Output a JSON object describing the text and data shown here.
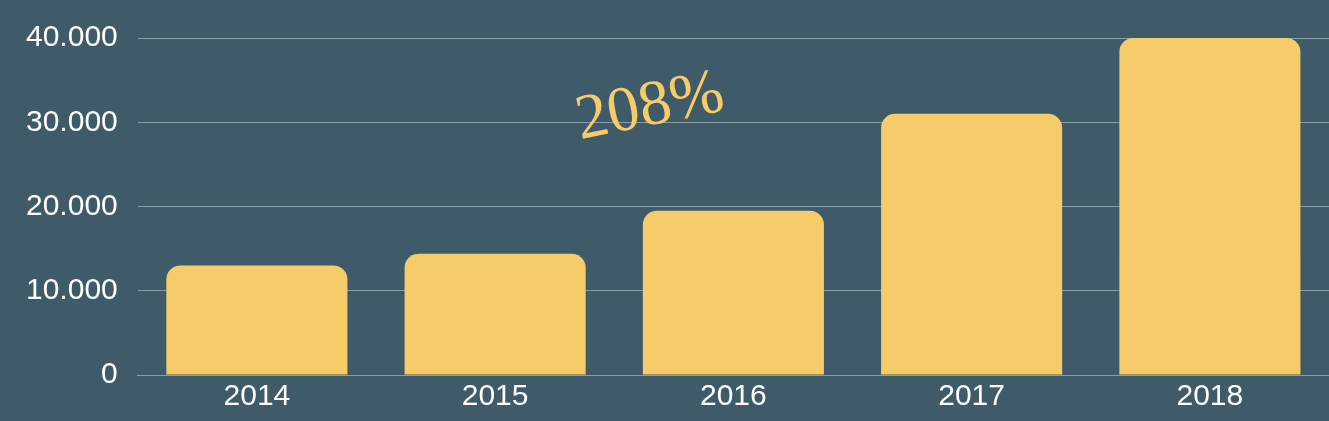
{
  "chart_data": {
    "type": "bar",
    "categories": [
      "2014",
      "2015",
      "2016",
      "2017",
      "2018"
    ],
    "values": [
      13000,
      14400,
      19500,
      31000,
      40000
    ],
    "color": "#f5cc67",
    "ylim": [
      0,
      40000
    ],
    "yticks": [
      {
        "value": 0,
        "label": "0"
      },
      {
        "value": 10000,
        "label": "10.000"
      },
      {
        "value": 20000,
        "label": "20.000"
      },
      {
        "value": 30000,
        "label": "30.000"
      },
      {
        "value": 40000,
        "label": "40.000"
      }
    ],
    "grid": "y",
    "legend": false,
    "annotations": [
      "208%"
    ]
  }
}
